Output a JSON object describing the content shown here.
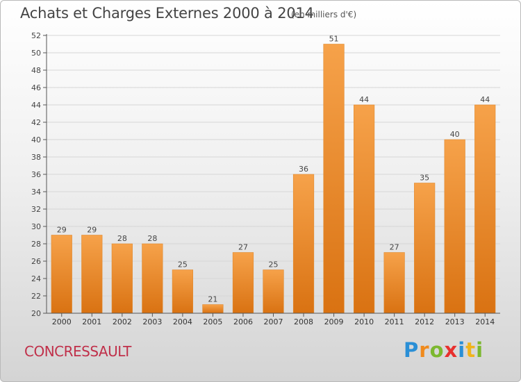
{
  "header": {
    "title": "Achats et Charges Externes 2000 à 2014",
    "subtitle": "(en milliers d'€)"
  },
  "footer": {
    "commune": "CONCRESSAULT",
    "logo_letters": [
      {
        "ch": "P",
        "color": "#2a8fd6"
      },
      {
        "ch": "r",
        "color": "#f08a1c"
      },
      {
        "ch": "o",
        "color": "#7cb82f"
      },
      {
        "ch": "x",
        "color": "#e8302e"
      },
      {
        "ch": "i",
        "color": "#2a8fd6"
      },
      {
        "ch": "t",
        "color": "#f0b41c"
      },
      {
        "ch": "i",
        "color": "#7cb82f"
      }
    ]
  },
  "chart_data": {
    "type": "bar",
    "title": "Achats et Charges Externes 2000 à 2014",
    "subtitle": "(en milliers d'€)",
    "xlabel": "",
    "ylabel": "",
    "categories": [
      "2000",
      "2001",
      "2002",
      "2003",
      "2004",
      "2005",
      "2006",
      "2007",
      "2008",
      "2009",
      "2010",
      "2011",
      "2012",
      "2013",
      "2014"
    ],
    "values": [
      29,
      29,
      28,
      28,
      25,
      21,
      27,
      25,
      36,
      51,
      44,
      27,
      35,
      40,
      44
    ],
    "ylim": [
      20,
      52
    ],
    "yticks": [
      20,
      22,
      24,
      26,
      28,
      30,
      32,
      34,
      36,
      38,
      40,
      42,
      44,
      46,
      48,
      50,
      52
    ],
    "grid": true,
    "legend": "none",
    "bar_color_light": "#f6a24a",
    "bar_color_dark": "#d97212",
    "axis_color": "#555555"
  }
}
